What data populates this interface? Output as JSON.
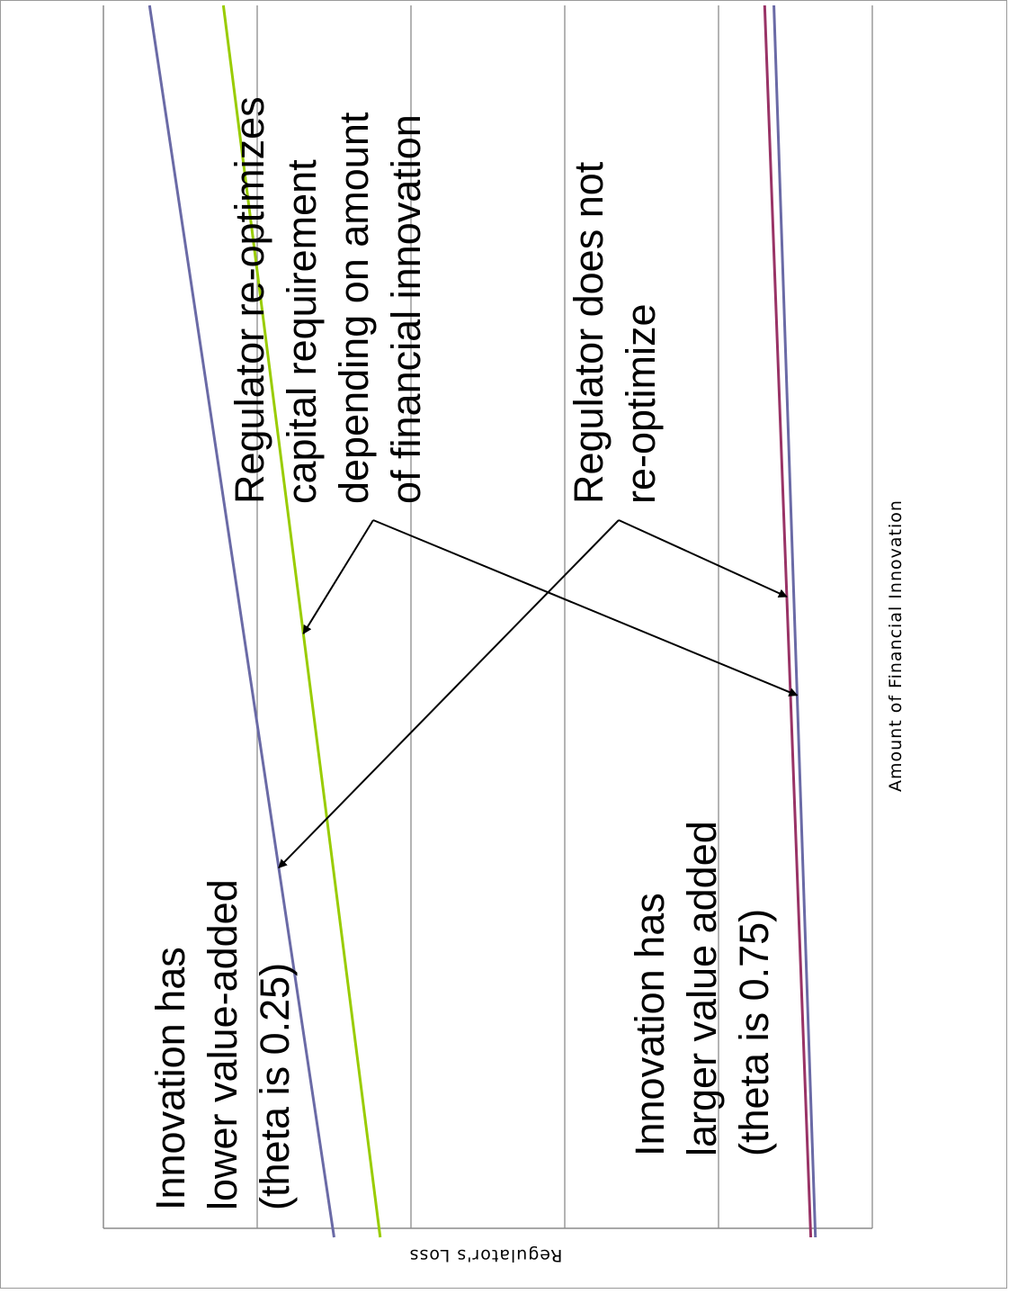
{
  "chart_data": {
    "type": "line",
    "title": "",
    "xlabel": "Amount of Financial Innovation",
    "ylabel": "Regulator's Loss",
    "grid": true,
    "legend": "none",
    "x": [
      0,
      10
    ],
    "ylim": [
      0,
      5
    ],
    "series": [
      {
        "color": "#6a6aa6",
        "values": [
          1.5,
          0.3
        ]
      },
      {
        "color": "#99cc00",
        "values": [
          1.8,
          0.78
        ]
      },
      {
        "color": "#993366",
        "values": [
          4.6,
          4.3
        ]
      },
      {
        "color": "#6a6aa6",
        "values": [
          4.63,
          4.36
        ]
      }
    ],
    "annotations": [
      {
        "id": "reopt",
        "lines": [
          "Regulator re-optimizes",
          "capital requirement",
          "depending on amount",
          "of financial innovation"
        ]
      },
      {
        "id": "noreopt",
        "lines": [
          "Regulator does not",
          "re-optimize"
        ]
      },
      {
        "id": "low",
        "lines": [
          "Innovation has",
          "lower value-added",
          "(theta is 0.25)"
        ]
      },
      {
        "id": "high",
        "lines": [
          "Innovation has",
          "larger value added",
          "(theta is 0.75)"
        ]
      }
    ]
  }
}
